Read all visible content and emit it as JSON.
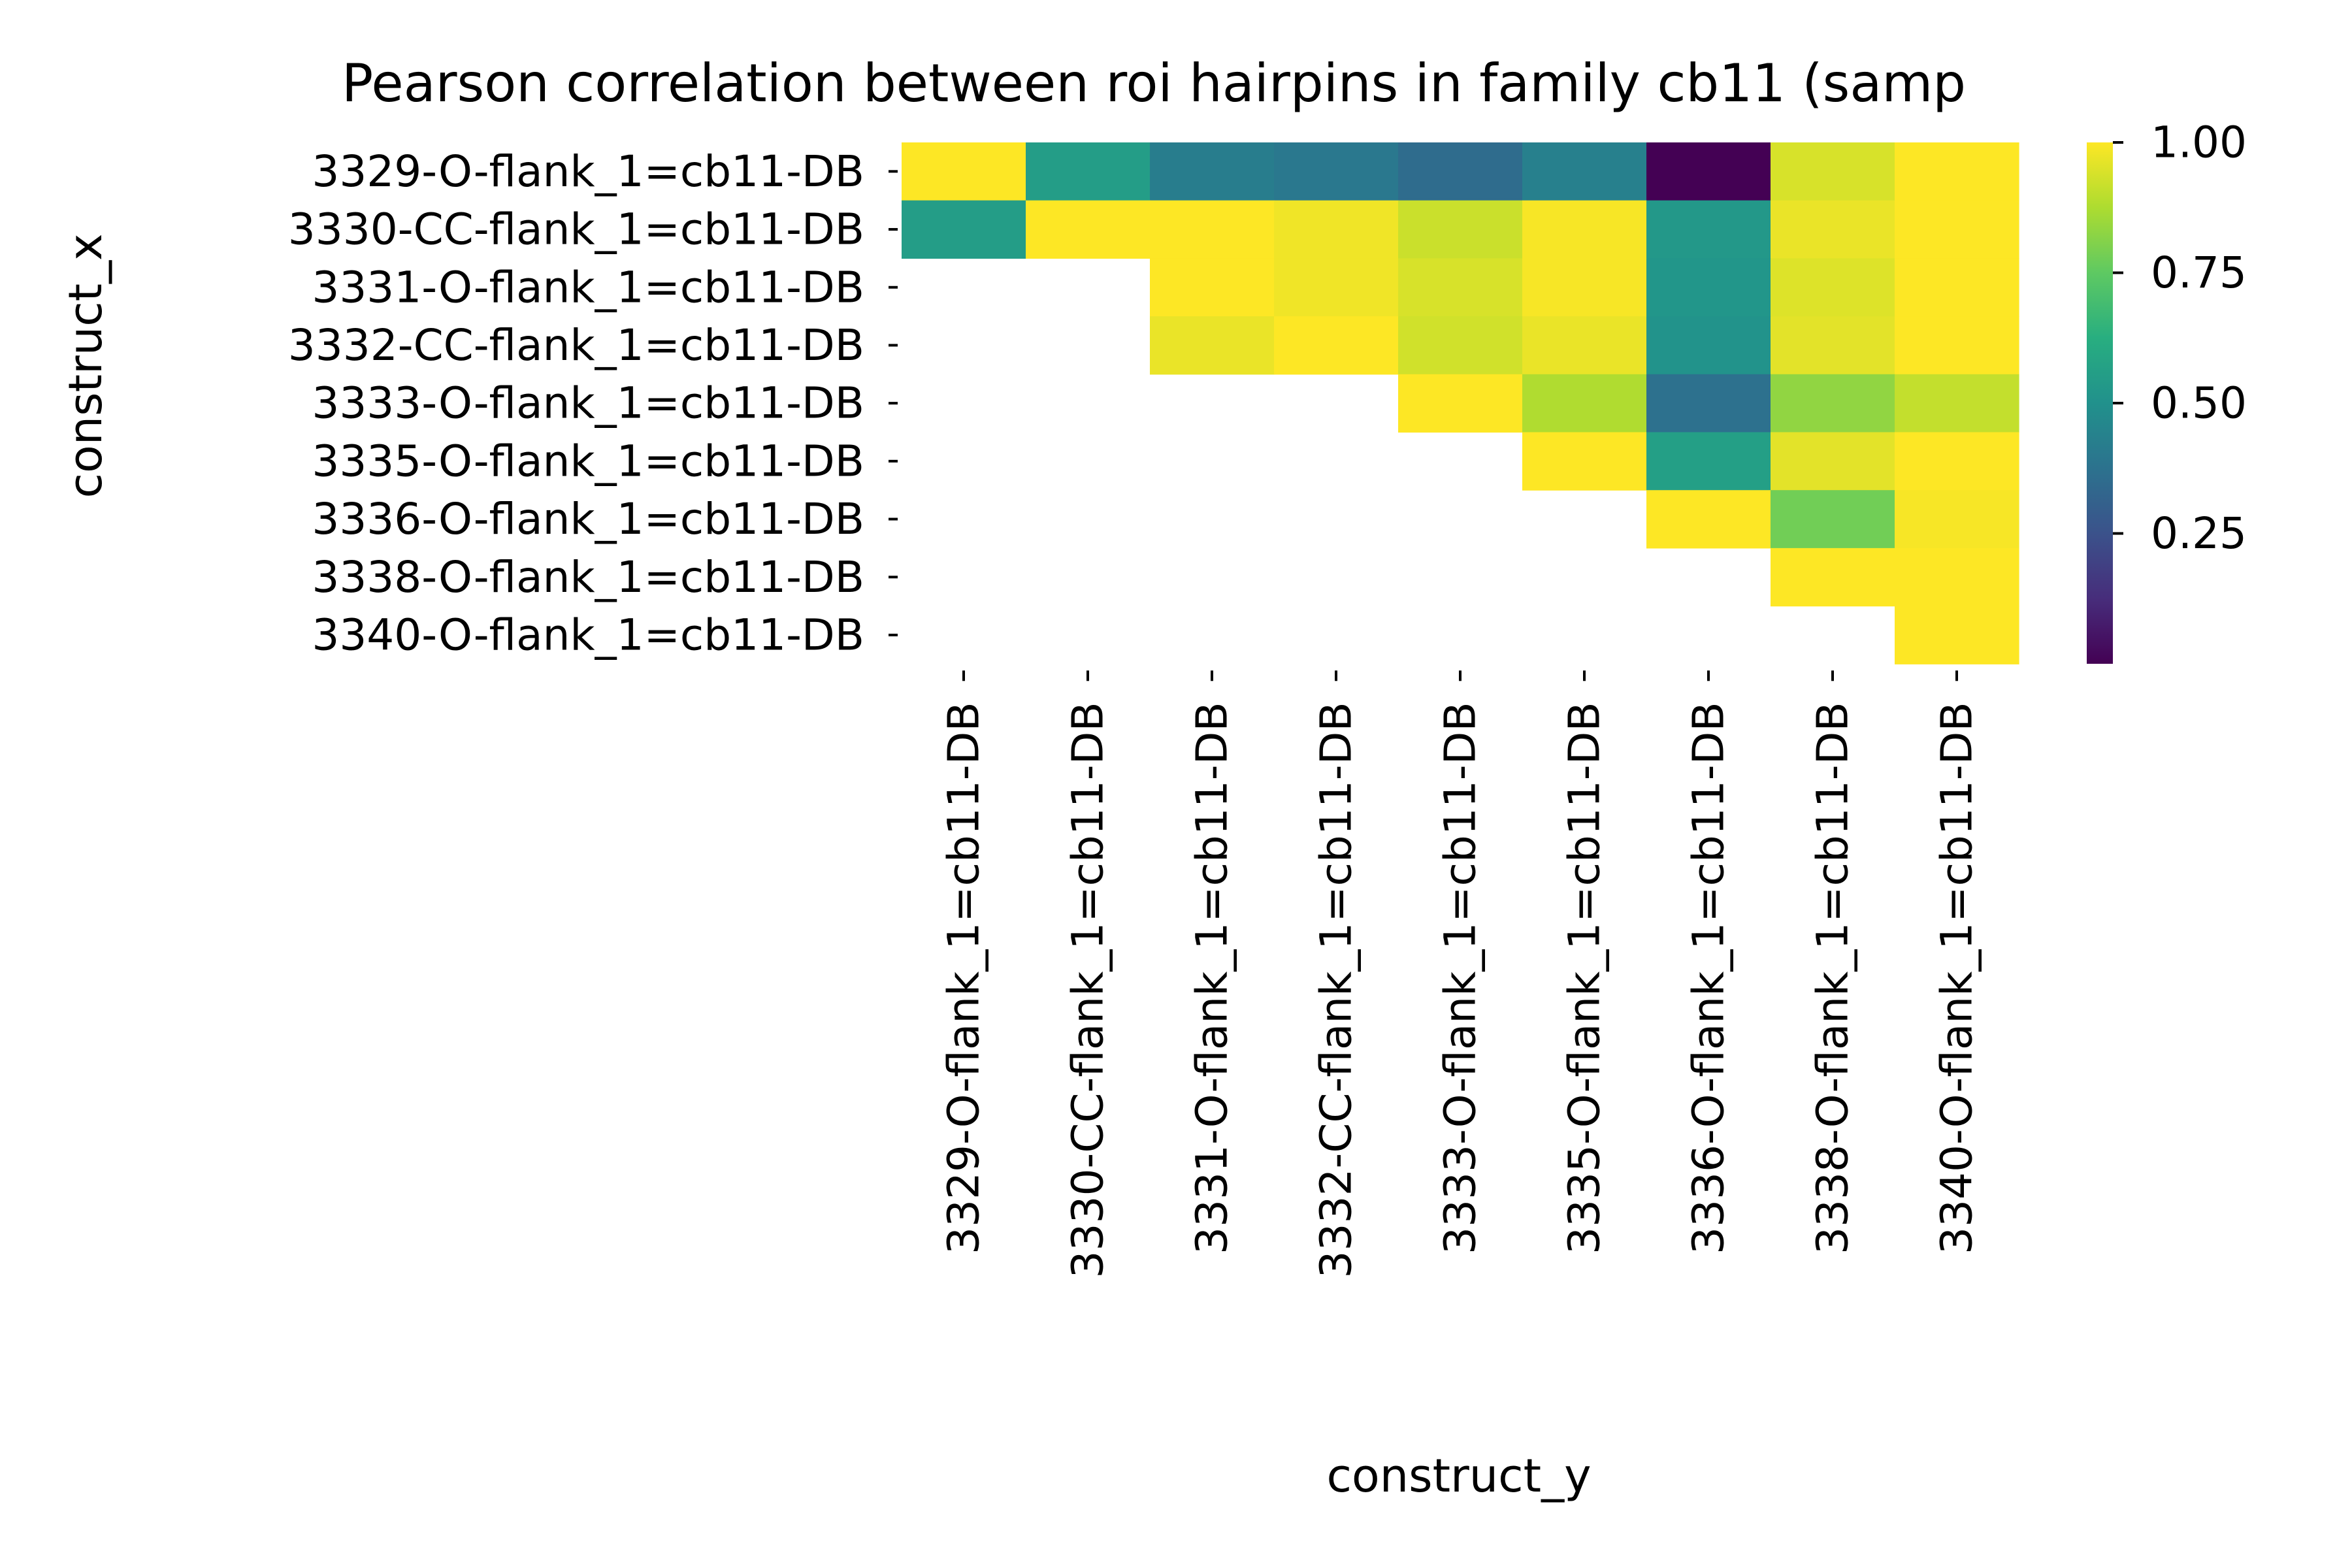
{
  "chart_data": {
    "type": "heatmap",
    "title": "Pearson correlation between roi hairpins in family cb11 (samp",
    "xlabel": "construct_y",
    "ylabel": "construct_x",
    "x_categories": [
      "3329-O-flank_1=cb11-DB",
      "3330-CC-flank_1=cb11-DB",
      "3331-O-flank_1=cb11-DB",
      "3332-CC-flank_1=cb11-DB",
      "3333-O-flank_1=cb11-DB",
      "3335-O-flank_1=cb11-DB",
      "3336-O-flank_1=cb11-DB",
      "3338-O-flank_1=cb11-DB",
      "3340-O-flank_1=cb11-DB"
    ],
    "y_categories": [
      "3329-O-flank_1=cb11-DB",
      "3330-CC-flank_1=cb11-DB",
      "3331-O-flank_1=cb11-DB",
      "3332-CC-flank_1=cb11-DB",
      "3333-O-flank_1=cb11-DB",
      "3335-O-flank_1=cb11-DB",
      "3336-O-flank_1=cb11-DB",
      "3338-O-flank_1=cb11-DB",
      "3340-O-flank_1=cb11-DB"
    ],
    "values": [
      [
        1.0,
        0.55,
        0.42,
        0.4,
        0.35,
        0.43,
        0.0,
        0.94,
        1.0
      ],
      [
        0.55,
        1.0,
        1.0,
        0.98,
        0.92,
        0.99,
        0.53,
        0.97,
        1.0
      ],
      [
        null,
        null,
        1.0,
        0.98,
        0.94,
        0.99,
        0.52,
        0.95,
        1.0
      ],
      [
        null,
        null,
        0.97,
        1.0,
        0.93,
        0.97,
        0.51,
        0.96,
        1.0
      ],
      [
        null,
        null,
        null,
        null,
        1.0,
        0.88,
        0.37,
        0.83,
        0.91
      ],
      [
        null,
        null,
        null,
        null,
        null,
        1.0,
        0.56,
        0.96,
        1.0
      ],
      [
        null,
        null,
        null,
        null,
        null,
        null,
        1.0,
        0.78,
        0.99
      ],
      [
        null,
        null,
        null,
        null,
        null,
        null,
        null,
        1.0,
        1.0
      ],
      [
        null,
        null,
        null,
        null,
        null,
        null,
        null,
        null,
        1.0
      ]
    ],
    "colormap": "viridis",
    "vmin": 0.0,
    "vmax": 1.0,
    "colorbar_ticks": [
      1.0,
      0.75,
      0.5,
      0.25
    ],
    "colorbar_tick_labels": [
      "1.00",
      "0.75",
      "0.50",
      "0.25"
    ],
    "grid": false,
    "legend": "colorbar-right"
  }
}
